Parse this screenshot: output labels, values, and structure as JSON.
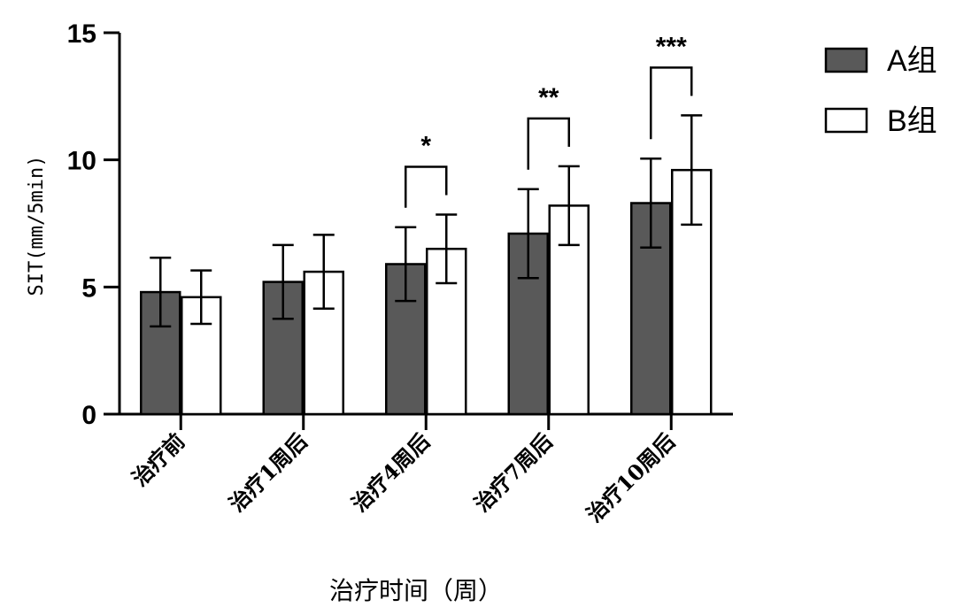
{
  "chart_data": {
    "type": "bar",
    "title": "",
    "xlabel": "治疗时间（周）",
    "ylabel": "SIT(mm/5min)",
    "ylim": [
      0,
      15
    ],
    "yticks": [
      0,
      5,
      10,
      15
    ],
    "yticklabels": [
      "0",
      "5",
      "10",
      "15"
    ],
    "categories": [
      "治疗前",
      "治疗1周后",
      "治疗4周后",
      "治疗7周后",
      "治疗10周后"
    ],
    "series": [
      {
        "name": "A组",
        "color": "#595959",
        "values": [
          4.8,
          5.2,
          5.9,
          7.1,
          8.3
        ],
        "errors": [
          1.35,
          1.45,
          1.45,
          1.75,
          1.75
        ]
      },
      {
        "name": "B组",
        "color": "#ffffff",
        "values": [
          4.6,
          5.6,
          6.5,
          8.2,
          9.6
        ],
        "errors": [
          1.05,
          1.45,
          1.35,
          1.55,
          2.15
        ]
      }
    ],
    "significance": [
      {
        "category": "治疗4周后",
        "label": "*"
      },
      {
        "category": "治疗7周后",
        "label": "**"
      },
      {
        "category": "治疗10周后",
        "label": "***"
      }
    ],
    "legend_position": "top-right",
    "grid": false
  }
}
